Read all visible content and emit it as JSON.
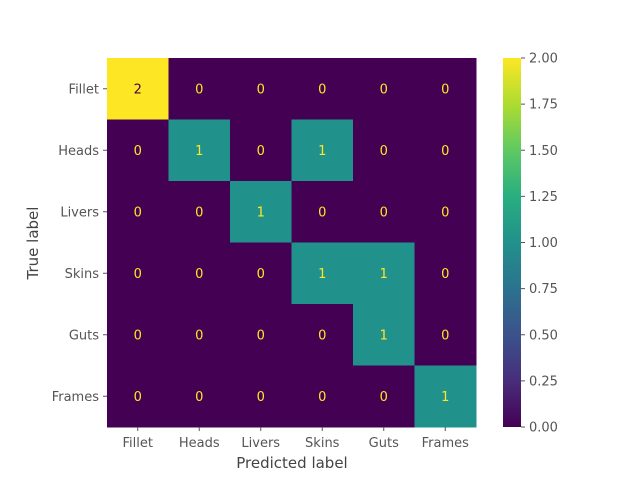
{
  "chart_data": {
    "type": "heatmap",
    "title": "",
    "xlabel": "Predicted label",
    "ylabel": "True label",
    "x_categories": [
      "Fillet",
      "Heads",
      "Livers",
      "Skins",
      "Guts",
      "Frames"
    ],
    "y_categories": [
      "Fillet",
      "Heads",
      "Livers",
      "Skins",
      "Guts",
      "Frames"
    ],
    "matrix": [
      [
        2,
        0,
        0,
        0,
        0,
        0
      ],
      [
        0,
        1,
        0,
        1,
        0,
        0
      ],
      [
        0,
        0,
        1,
        0,
        0,
        0
      ],
      [
        0,
        0,
        0,
        1,
        1,
        0
      ],
      [
        0,
        0,
        0,
        0,
        1,
        0
      ],
      [
        0,
        0,
        0,
        0,
        0,
        1
      ]
    ],
    "colormap": "viridis",
    "colorbar": {
      "range": [
        0,
        2
      ],
      "ticks": [
        "0.00",
        "0.25",
        "0.50",
        "0.75",
        "1.00",
        "1.25",
        "1.50",
        "1.75",
        "2.00"
      ]
    },
    "colors": {
      "low": "#440154",
      "mid": "#21918c",
      "high": "#fde725",
      "text_on_dark": "#fde725",
      "text_on_light": "#440154",
      "axis_text": "#555555",
      "axis_label": "#444444"
    }
  }
}
